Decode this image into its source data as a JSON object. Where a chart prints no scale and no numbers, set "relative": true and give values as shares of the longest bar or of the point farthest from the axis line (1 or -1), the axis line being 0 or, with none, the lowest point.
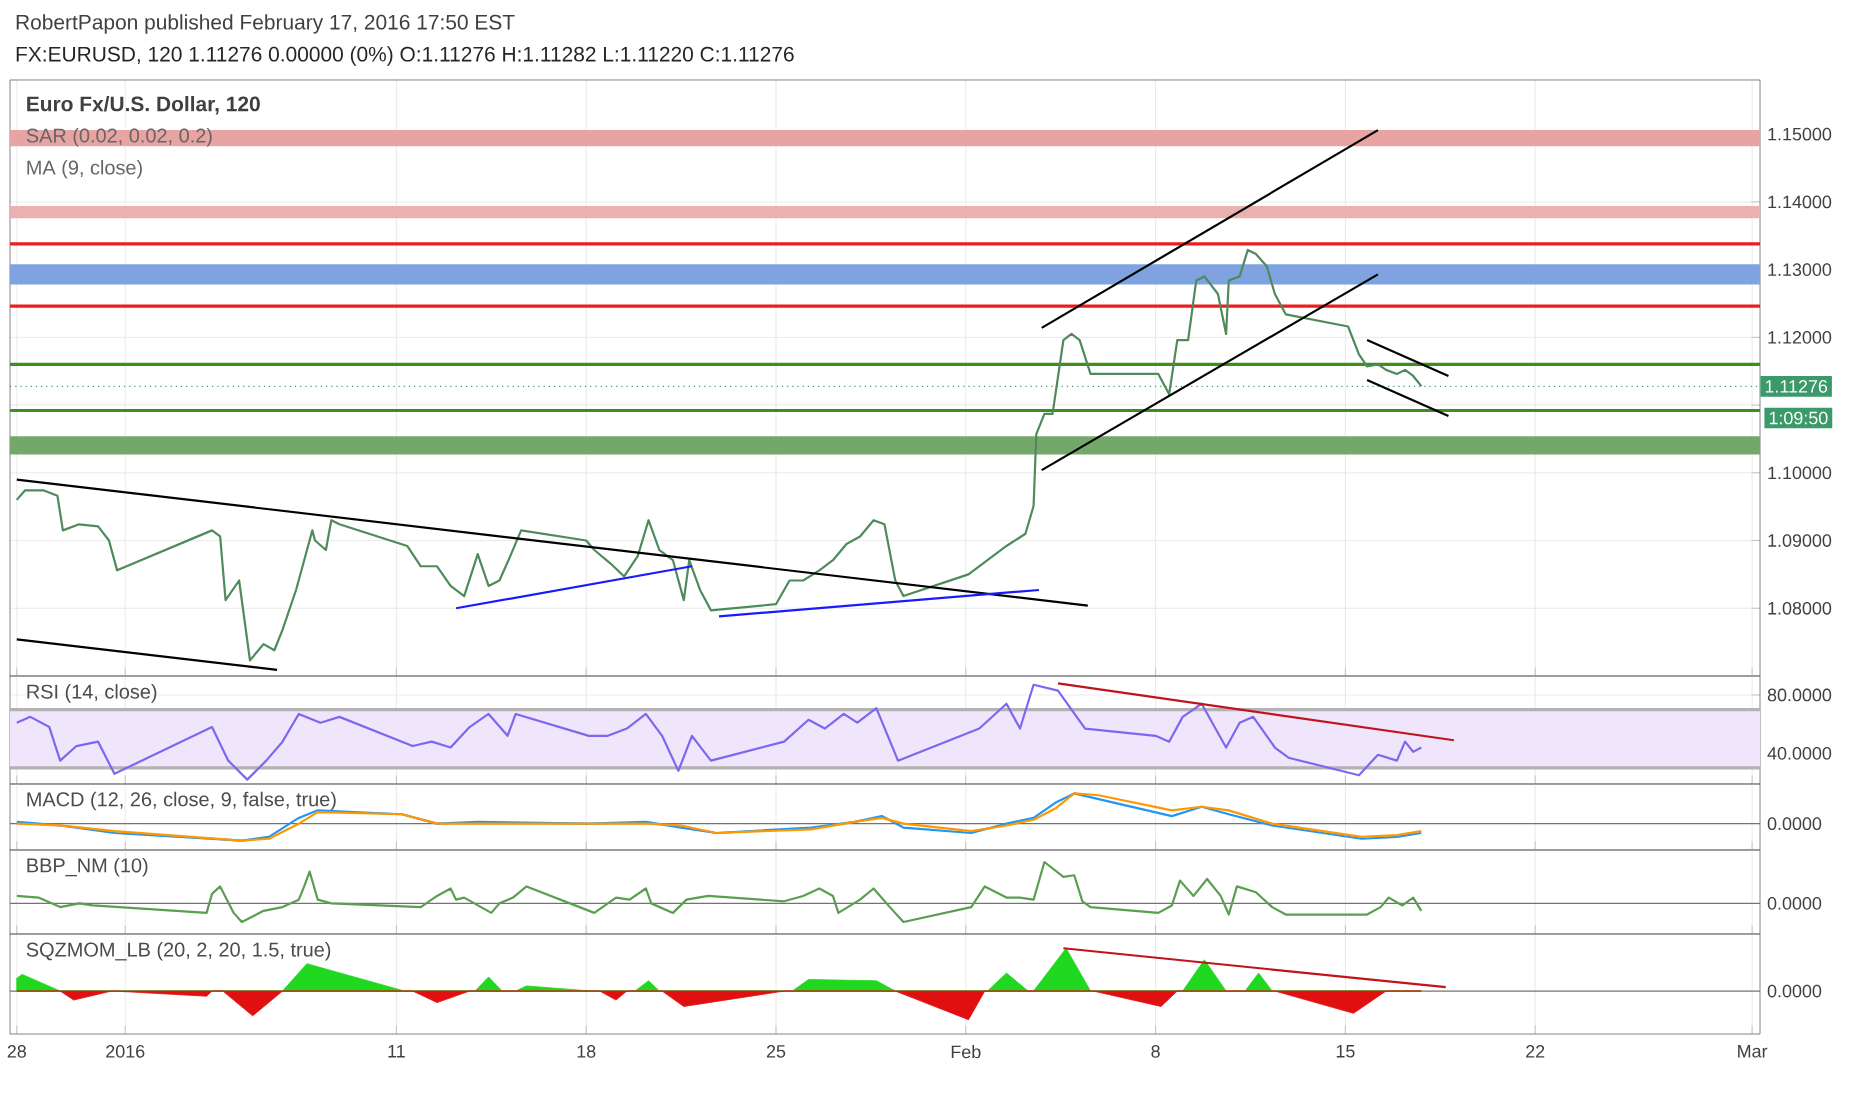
{
  "chart_data": [
    {
      "type": "line",
      "title": "FX:EURUSD, 120 1.11276 0.00000 (0%) O:1.11276 H:1.11282 L:1.11220 C:1.11276",
      "subtitle": "Euro Fx/U.S. Dollar, 120",
      "annotations": [
        "RobertPapon published February 17, 2016 17:50 EST",
        "SAR (0.02, 0.02, 0.2)",
        "MA (9, close)",
        "1:09:50"
      ],
      "xlim": [
        "2015-12-27T18:00",
        "2016-03-01T07:00"
      ],
      "xticks": [
        {
          "value": "2015-12-28",
          "label": null
        },
        {
          "value": "2016-01-01",
          "label": null
        },
        {
          "value": "2016-01-11",
          "label": null
        },
        {
          "value": "2016-01-18",
          "label": null
        },
        {
          "value": "2016-01-25",
          "label": null
        },
        {
          "value": "2016-02-01",
          "label": null
        },
        {
          "value": "2016-02-08",
          "label": null
        },
        {
          "value": "2016-02-15",
          "label": null
        },
        {
          "value": "2016-02-22",
          "label": null
        },
        {
          "value": "2016-03-01",
          "label": null
        }
      ],
      "ylim": [
        1.07,
        1.158
      ],
      "yticks": [
        {
          "value": 1.08,
          "label": "1.08000"
        },
        {
          "value": 1.09,
          "label": "1.09000"
        },
        {
          "value": 1.1,
          "label": "1.10000"
        },
        {
          "value": 1.11,
          "label": null
        },
        {
          "value": 1.12,
          "label": "1.12000"
        },
        {
          "value": 1.13,
          "label": "1.13000"
        },
        {
          "value": 1.14,
          "label": "1.14000"
        },
        {
          "value": 1.15,
          "label": "1.15000"
        }
      ],
      "grid": true,
      "tick_labels": "y",
      "bands": [
        {
          "axis": "y",
          "from": 1.1482,
          "to": 1.1506,
          "color": "#e8a3a3"
        },
        {
          "axis": "y",
          "from": 1.1376,
          "to": 1.1394,
          "color": "#eab1b1"
        },
        {
          "axis": "y",
          "from": 1.1278,
          "to": 1.1308,
          "color": "#7fa3e0"
        },
        {
          "axis": "y",
          "from": 1.1027,
          "to": 1.1054,
          "color": "#74a86a"
        }
      ],
      "ref_lines": [
        {
          "axis": "y",
          "value": 1.1338,
          "color": "#ee1c1c"
        },
        {
          "axis": "y",
          "value": 1.1246,
          "color": "#ee1c1c"
        },
        {
          "axis": "y",
          "value": 1.116,
          "color": "#3e8e1f"
        },
        {
          "axis": "y",
          "value": 1.1092,
          "color": "#3e8e1f"
        },
        {
          "axis": "y",
          "value": 1.11276,
          "label": "1.11276",
          "color": "#3c9a6a",
          "line_style": "dotted"
        }
      ],
      "series": [
        {
          "color": "#4f8a5b",
          "x": [
            "2015-12-28T00:00",
            "2015-12-28T07:12",
            "2015-12-29T00:00",
            "2015-12-29T12:00",
            "2015-12-29T16:48",
            "2015-12-30T07:12",
            "2015-12-31T00:00",
            "2015-12-31T09:36",
            "2015-12-31T16:48",
            "2016-01-04T04:48",
            "2016-01-04T12:00",
            "2016-01-04T16:48",
            "2016-01-05T04:48",
            "2016-01-05T09:36",
            "2016-01-05T14:24",
            "2016-01-06T02:24",
            "2016-01-06T12:00",
            "2016-01-06T19:12",
            "2016-01-07T07:12",
            "2016-01-07T14:24",
            "2016-01-07T21:36",
            "2016-01-08T00:00",
            "2016-01-08T09:36",
            "2016-01-08T14:24",
            "2016-01-08T21:36",
            "2016-01-11T09:36",
            "2016-01-11T21:36",
            "2016-01-12T12:00",
            "2016-01-13T00:00",
            "2016-01-13T12:00",
            "2016-01-14T00:00",
            "2016-01-14T09:36",
            "2016-01-14T19:12",
            "2016-01-15T04:48",
            "2016-01-15T14:24",
            "2016-01-18T00:00",
            "2016-01-18T07:12",
            "2016-01-18T21:36",
            "2016-01-19T09:36",
            "2016-01-19T21:36",
            "2016-01-20T07:12",
            "2016-01-20T16:48",
            "2016-01-21T04:48",
            "2016-01-21T14:24",
            "2016-01-21T19:12",
            "2016-01-22T04:48",
            "2016-01-22T14:24",
            "2016-01-25T00:00",
            "2016-01-25T12:00",
            "2016-01-26T00:00",
            "2016-01-26T14:24",
            "2016-01-27T02:24",
            "2016-01-27T14:24",
            "2016-01-28T02:24",
            "2016-01-28T14:24",
            "2016-01-29T00:00",
            "2016-01-29T09:36",
            "2016-01-29T16:48",
            "2016-02-01T02:24",
            "2016-02-01T19:12",
            "2016-02-02T12:00",
            "2016-02-03T04:48",
            "2016-02-03T12:00",
            "2016-02-03T14:24",
            "2016-02-03T21:36",
            "2016-02-04T04:48",
            "2016-02-04T14:24",
            "2016-02-04T21:36",
            "2016-02-05T04:48",
            "2016-02-05T14:24",
            "2016-02-08T02:24",
            "2016-02-08T12:00",
            "2016-02-08T19:12",
            "2016-02-09T04:48",
            "2016-02-09T12:00",
            "2016-02-09T19:12",
            "2016-02-10T07:12",
            "2016-02-10T14:24",
            "2016-02-10T16:48",
            "2016-02-11T02:24",
            "2016-02-11T09:36",
            "2016-02-11T16:48",
            "2016-02-12T02:24",
            "2016-02-12T09:36",
            "2016-02-12T19:12",
            "2016-02-15T02:24",
            "2016-02-15T12:00",
            "2016-02-15T19:12",
            "2016-02-16T04:48",
            "2016-02-16T12:00",
            "2016-02-16T21:36",
            "2016-02-17T04:48",
            "2016-02-17T12:00",
            "2016-02-17T19:12"
          ],
          "values": [
            1.096,
            1.0974,
            1.0974,
            1.0966,
            1.0915,
            1.0924,
            1.0921,
            1.09,
            1.0856,
            1.0915,
            1.0906,
            1.0812,
            1.0841,
            1.0782,
            1.0723,
            1.0747,
            1.0738,
            1.0768,
            1.0827,
            1.0871,
            1.0915,
            1.09,
            1.0886,
            1.093,
            1.0924,
            1.0892,
            1.0862,
            1.0862,
            1.0833,
            1.0818,
            1.088,
            1.0833,
            1.0841,
            1.0877,
            1.0915,
            1.09,
            1.0886,
            1.0866,
            1.0847,
            1.0877,
            1.093,
            1.0886,
            1.0871,
            1.0812,
            1.0871,
            1.0827,
            1.0797,
            1.0806,
            1.0841,
            1.0841,
            1.0856,
            1.0871,
            1.0895,
            1.0906,
            1.093,
            1.0924,
            1.0841,
            1.0818,
            1.085,
            1.0871,
            1.0892,
            1.091,
            1.0951,
            1.1057,
            1.1087,
            1.1087,
            1.1196,
            1.1205,
            1.1196,
            1.1146,
            1.1146,
            1.1116,
            1.1196,
            1.1196,
            1.1284,
            1.129,
            1.1264,
            1.1205,
            1.1284,
            1.129,
            1.1329,
            1.1323,
            1.1305,
            1.1264,
            1.1234,
            1.1216,
            1.1175,
            1.1157,
            1.116,
            1.1152,
            1.1146,
            1.1152,
            1.1143,
            1.1128
          ]
        },
        {
          "color": "#000000",
          "x": [
            "2015-12-28T00:00",
            "2016-02-05T12:00"
          ],
          "values": [
            1.099,
            1.0804
          ]
        },
        {
          "color": "#000000",
          "x": [
            "2015-12-28T00:00",
            "2016-01-06T14:24"
          ],
          "values": [
            1.0754,
            1.0709
          ]
        },
        {
          "color": "#000000",
          "x": [
            "2016-02-03T19:12",
            "2016-02-16T04:48"
          ],
          "values": [
            1.1004,
            1.1293
          ]
        },
        {
          "color": "#000000",
          "x": [
            "2016-02-03T19:12",
            "2016-02-16T04:48"
          ],
          "values": [
            1.1214,
            1.1506
          ]
        },
        {
          "color": "#000000",
          "x": [
            "2016-02-15T19:12",
            "2016-02-18T19:12"
          ],
          "values": [
            1.1196,
            1.1143
          ]
        },
        {
          "color": "#000000",
          "x": [
            "2016-02-15T19:12",
            "2016-02-18T19:12"
          ],
          "values": [
            1.1137,
            1.1084
          ]
        },
        {
          "color": "#1a1aff",
          "x": [
            "2016-01-13T04:48",
            "2016-01-21T21:36"
          ],
          "values": [
            1.08,
            1.0862
          ]
        },
        {
          "color": "#1a1aff",
          "x": [
            "2016-01-22T21:36",
            "2016-02-03T16:48"
          ],
          "values": [
            1.0788,
            1.0827
          ]
        }
      ]
    },
    {
      "type": "line",
      "title": "RSI (14, close)",
      "xlim": [
        "2015-12-27T18:00",
        "2016-03-01T07:00"
      ],
      "xticks": [
        {
          "value": "2015-12-28",
          "label": null
        },
        {
          "value": "2016-01-01",
          "label": null
        },
        {
          "value": "2016-01-11",
          "label": null
        },
        {
          "value": "2016-01-18",
          "label": null
        },
        {
          "value": "2016-01-25",
          "label": null
        },
        {
          "value": "2016-02-01",
          "label": null
        },
        {
          "value": "2016-02-08",
          "label": null
        },
        {
          "value": "2016-02-15",
          "label": null
        },
        {
          "value": "2016-02-22",
          "label": null
        },
        {
          "value": "2016-03-01",
          "label": null
        }
      ],
      "ylim": [
        19,
        93
      ],
      "yticks": [
        {
          "value": 40,
          "label": "40.0000"
        },
        {
          "value": 80,
          "label": "80.0000"
        }
      ],
      "grid": true,
      "tick_labels": "y",
      "bands": [
        {
          "axis": "y",
          "from": 30,
          "to": 70,
          "color": "#efe6fb"
        }
      ],
      "ref_lines": [
        {
          "axis": "y",
          "value": 70,
          "color": "#b3b3b3"
        },
        {
          "axis": "y",
          "value": 30,
          "color": "#b3b3b3"
        }
      ],
      "series": [
        {
          "color": "#7b68ee",
          "x": [
            "2015-12-28T00:00",
            "2015-12-28T12:00",
            "2015-12-29T04:48",
            "2015-12-29T14:24",
            "2015-12-30T04:48",
            "2015-12-31T00:00",
            "2015-12-31T14:24",
            "2016-01-04T04:48",
            "2016-01-04T19:12",
            "2016-01-05T12:00",
            "2016-01-06T04:48",
            "2016-01-06T19:12",
            "2016-01-07T09:36",
            "2016-01-08T04:48",
            "2016-01-08T21:36",
            "2016-01-11T14:24",
            "2016-01-12T07:12",
            "2016-01-13T00:00",
            "2016-01-13T16:48",
            "2016-01-14T09:36",
            "2016-01-15T02:24",
            "2016-01-15T09:36",
            "2016-01-18T02:24",
            "2016-01-18T19:12",
            "2016-01-19T12:00",
            "2016-01-20T04:48",
            "2016-01-20T19:12",
            "2016-01-21T09:36",
            "2016-01-21T21:36",
            "2016-01-22T14:24",
            "2016-01-25T07:12",
            "2016-01-26T04:48",
            "2016-01-26T19:12",
            "2016-01-27T12:00",
            "2016-01-28T00:00",
            "2016-01-28T16:48",
            "2016-01-29T12:00",
            "2016-02-01T12:00",
            "2016-02-02T12:00",
            "2016-02-03T00:00",
            "2016-02-03T12:00",
            "2016-02-04T09:36",
            "2016-02-05T09:36",
            "2016-02-08T00:00",
            "2016-02-08T12:00",
            "2016-02-09T00:00",
            "2016-02-09T16:48",
            "2016-02-10T14:24",
            "2016-02-11T02:24",
            "2016-02-11T14:24",
            "2016-02-12T09:36",
            "2016-02-12T21:36",
            "2016-02-15T12:00",
            "2016-02-16T04:48",
            "2016-02-16T21:36",
            "2016-02-17T04:48",
            "2016-02-17T12:00",
            "2016-02-17T19:12"
          ],
          "values": [
            61,
            65,
            58,
            35,
            45,
            48,
            26,
            58,
            35,
            22,
            35,
            48,
            67,
            61,
            65,
            45,
            48,
            44,
            58,
            67,
            52,
            67,
            52,
            52,
            57,
            67,
            52,
            28,
            52,
            35,
            48,
            63,
            57,
            67,
            61,
            71,
            35,
            57,
            74,
            57,
            87,
            83,
            57,
            52,
            48,
            65,
            74,
            44,
            61,
            65,
            44,
            37,
            25,
            39,
            35,
            48,
            41,
            44
          ]
        },
        {
          "color": "#c0141c",
          "x": [
            "2016-02-04T09:36",
            "2016-02-19T00:00"
          ],
          "values": [
            88,
            49
          ]
        }
      ]
    },
    {
      "type": "line",
      "title": "MACD (12, 26, close, 9, false, true)",
      "relative": true,
      "xlim": [
        "2015-12-27T18:00",
        "2016-03-01T07:00"
      ],
      "xticks": [
        {
          "value": "2015-12-28",
          "label": null
        },
        {
          "value": "2016-01-01",
          "label": null
        },
        {
          "value": "2016-01-11",
          "label": null
        },
        {
          "value": "2016-01-18",
          "label": null
        },
        {
          "value": "2016-01-25",
          "label": null
        },
        {
          "value": "2016-02-01",
          "label": null
        },
        {
          "value": "2016-02-08",
          "label": null
        },
        {
          "value": "2016-02-15",
          "label": null
        },
        {
          "value": "2016-02-22",
          "label": null
        },
        {
          "value": "2016-03-01",
          "label": null
        }
      ],
      "annotations": [
        "0.0000"
      ],
      "grid": true,
      "tick_labels": "y",
      "series": [
        {
          "color": "#2196f3",
          "x": [
            "2015-12-28T00:00",
            "2015-12-29T14:24",
            "2015-12-31T14:24",
            "2016-01-05T07:12",
            "2016-01-06T07:12",
            "2016-01-07T09:36",
            "2016-01-08T02:24",
            "2016-01-11T04:48",
            "2016-01-12T12:00",
            "2016-01-14T00:00",
            "2016-01-18T02:24",
            "2016-01-20T04:48",
            "2016-01-21T12:00",
            "2016-01-22T19:12",
            "2016-01-26T07:12",
            "2016-01-27T21:36",
            "2016-01-28T21:36",
            "2016-01-29T16:48",
            "2016-02-01T04:48",
            "2016-02-02T12:00",
            "2016-02-03T12:00",
            "2016-02-04T07:12",
            "2016-02-05T00:00",
            "2016-02-05T21:36",
            "2016-02-08T14:24",
            "2016-02-09T16:48",
            "2016-02-10T16:48",
            "2016-02-12T07:12",
            "2016-02-15T14:24",
            "2016-02-16T21:36",
            "2016-02-17T19:12"
          ],
          "values": [
            0.06,
            -0.06,
            -0.31,
            -0.56,
            -0.44,
            0.19,
            0.44,
            0.31,
            0,
            0.06,
            0,
            0.06,
            -0.13,
            -0.31,
            -0.13,
            0.06,
            0.25,
            -0.13,
            -0.31,
            0,
            0.19,
            0.69,
            1,
            0.81,
            0.25,
            0.56,
            0.31,
            -0.06,
            -0.5,
            -0.44,
            -0.31
          ]
        },
        {
          "color": "#ff9800",
          "x": [
            "2015-12-28T00:00",
            "2015-12-29T14:24",
            "2015-12-31T14:24",
            "2016-01-05T07:12",
            "2016-01-06T07:12",
            "2016-01-07T09:36",
            "2016-01-08T02:24",
            "2016-01-11T04:48",
            "2016-01-12T12:00",
            "2016-01-14T00:00",
            "2016-01-18T02:24",
            "2016-01-20T04:48",
            "2016-01-21T12:00",
            "2016-01-22T19:12",
            "2016-01-26T07:12",
            "2016-01-27T21:36",
            "2016-01-28T21:36",
            "2016-01-29T16:48",
            "2016-02-01T04:48",
            "2016-02-02T12:00",
            "2016-02-03T12:00",
            "2016-02-04T07:12",
            "2016-02-05T00:00",
            "2016-02-05T21:36",
            "2016-02-08T14:24",
            "2016-02-09T16:48",
            "2016-02-10T16:48",
            "2016-02-12T07:12",
            "2016-02-15T14:24",
            "2016-02-16T21:36",
            "2016-02-17T19:12"
          ],
          "values": [
            0,
            -0.06,
            -0.25,
            -0.56,
            -0.5,
            0,
            0.38,
            0.31,
            0,
            0,
            0,
            0,
            -0.06,
            -0.31,
            -0.19,
            0.06,
            0.19,
            0,
            -0.25,
            -0.06,
            0.13,
            0.5,
            1,
            0.94,
            0.44,
            0.56,
            0.44,
            0,
            -0.44,
            -0.38,
            -0.25
          ]
        }
      ]
    },
    {
      "type": "line",
      "title": "BBP_NM (10)",
      "relative": true,
      "xlim": [
        "2015-12-27T18:00",
        "2016-03-01T07:00"
      ],
      "xticks": [
        {
          "value": "2015-12-28",
          "label": null
        },
        {
          "value": "2016-01-01",
          "label": null
        },
        {
          "value": "2016-01-11",
          "label": null
        },
        {
          "value": "2016-01-18",
          "label": null
        },
        {
          "value": "2016-01-25",
          "label": null
        },
        {
          "value": "2016-02-01",
          "label": null
        },
        {
          "value": "2016-02-08",
          "label": null
        },
        {
          "value": "2016-02-15",
          "label": null
        },
        {
          "value": "2016-02-22",
          "label": null
        },
        {
          "value": "2016-03-01",
          "label": null
        }
      ],
      "annotations": [
        "0.0000"
      ],
      "grid": true,
      "tick_labels": "y",
      "series": [
        {
          "color": "#5a9e50",
          "x": [
            "2015-12-28T00:00",
            "2015-12-28T19:12",
            "2015-12-29T14:24",
            "2015-12-30T07:12",
            "2015-12-30T19:12",
            "2016-01-04T00:00",
            "2016-01-04T04:48",
            "2016-01-04T12:00",
            "2016-01-05T00:00",
            "2016-01-05T07:12",
            "2016-01-06T02:24",
            "2016-01-06T19:12",
            "2016-01-07T09:36",
            "2016-01-07T14:24",
            "2016-01-07T19:12",
            "2016-01-08T02:24",
            "2016-01-08T14:24",
            "2016-01-11T21:36",
            "2016-01-12T12:00",
            "2016-01-13T00:00",
            "2016-01-13T04:48",
            "2016-01-13T12:00",
            "2016-01-14T12:00",
            "2016-01-14T19:12",
            "2016-01-15T07:12",
            "2016-01-15T19:12",
            "2016-01-18T07:12",
            "2016-01-19T02:24",
            "2016-01-19T14:24",
            "2016-01-20T04:48",
            "2016-01-20T09:36",
            "2016-01-21T04:48",
            "2016-01-21T16:48",
            "2016-01-22T12:00",
            "2016-01-25T07:12",
            "2016-01-26T00:00",
            "2016-01-26T14:24",
            "2016-01-27T02:24",
            "2016-01-27T07:12",
            "2016-01-28T02:24",
            "2016-01-28T14:24",
            "2016-01-29T04:48",
            "2016-01-29T16:48",
            "2016-02-01T04:48",
            "2016-02-01T16:48",
            "2016-02-02T12:00",
            "2016-02-03T00:00",
            "2016-02-03T12:00",
            "2016-02-03T21:36",
            "2016-02-04T14:24",
            "2016-02-05T00:00",
            "2016-02-05T07:12",
            "2016-02-05T14:24",
            "2016-02-08T02:24",
            "2016-02-08T14:24",
            "2016-02-08T21:36",
            "2016-02-09T09:36",
            "2016-02-09T21:36",
            "2016-02-10T09:36",
            "2016-02-10T16:48",
            "2016-02-11T00:00",
            "2016-02-11T16:48",
            "2016-02-12T07:12",
            "2016-02-12T19:12",
            "2016-02-15T19:12",
            "2016-02-16T07:12",
            "2016-02-16T14:24",
            "2016-02-17T02:24",
            "2016-02-17T12:00",
            "2016-02-17T19:12"
          ],
          "values": [
            0.18,
            0.14,
            -0.09,
            0,
            -0.05,
            -0.23,
            0.23,
            0.41,
            -0.23,
            -0.45,
            -0.18,
            -0.09,
            0.09,
            0.41,
            0.77,
            0.09,
            0,
            -0.09,
            0.18,
            0.36,
            0.09,
            0.14,
            -0.23,
            0,
            0.14,
            0.41,
            -0.23,
            0.14,
            0.09,
            0.36,
            0,
            -0.23,
            0.09,
            0.18,
            0.05,
            0.18,
            0.36,
            0.18,
            -0.23,
            0.09,
            0.36,
            -0.09,
            -0.45,
            -0.09,
            0.41,
            0.14,
            0.14,
            0.09,
            1,
            0.64,
            0.68,
            0.05,
            -0.09,
            -0.23,
            -0.05,
            0.55,
            0.18,
            0.59,
            0.18,
            -0.27,
            0.41,
            0.27,
            -0.09,
            -0.27,
            -0.27,
            -0.09,
            0.14,
            -0.05,
            0.14,
            -0.18
          ]
        }
      ]
    },
    {
      "type": "area",
      "title": "SQZMOM_LB (20, 2, 20, 1.5, true)",
      "relative": true,
      "xlim": [
        "2015-12-27T18:00",
        "2016-03-01T07:00"
      ],
      "xticks": [
        {
          "value": "2015-12-28",
          "label": "28"
        },
        {
          "value": "2016-01-01",
          "label": "2016"
        },
        {
          "value": "2016-01-11",
          "label": "11"
        },
        {
          "value": "2016-01-18",
          "label": "18"
        },
        {
          "value": "2016-01-25",
          "label": "25"
        },
        {
          "value": "2016-02-01",
          "label": "Feb"
        },
        {
          "value": "2016-02-08",
          "label": "8"
        },
        {
          "value": "2016-02-15",
          "label": "15"
        },
        {
          "value": "2016-02-22",
          "label": "22"
        },
        {
          "value": "2016-03-01",
          "label": "Mar"
        }
      ],
      "annotations": [
        "0.0000"
      ],
      "grid": true,
      "series": [
        {
          "color": "#1fd81f",
          "x": [
            "2015-12-28T00:00",
            "2015-12-28T04:48",
            "2015-12-29T14:24",
            "2016-01-06T19:12",
            "2016-01-07T16:48",
            "2016-01-11T07:12",
            "2016-01-13T21:36",
            "2016-01-14T09:36",
            "2016-01-14T21:36",
            "2016-01-15T09:36",
            "2016-01-15T19:12",
            "2016-01-18T04:48",
            "2016-01-19T19:12",
            "2016-01-20T07:12",
            "2016-01-20T16:48",
            "2016-01-25T14:24",
            "2016-01-26T04:48",
            "2016-01-28T16:48",
            "2016-01-29T09:36",
            "2016-02-01T19:12",
            "2016-02-02T12:00",
            "2016-02-03T07:12",
            "2016-02-03T12:00",
            "2016-02-04T16:48",
            "2016-02-05T14:24",
            "2016-02-09T00:00",
            "2016-02-09T19:12",
            "2016-02-10T14:24",
            "2016-02-11T07:12",
            "2016-02-11T19:12",
            "2016-02-12T07:12",
            "2016-02-17T19:12"
          ],
          "values": [
            0.3,
            0.39,
            0,
            0,
            0.64,
            0,
            0,
            0.33,
            0,
            0,
            0.12,
            0,
            0,
            0.24,
            0,
            0,
            0.27,
            0.24,
            0,
            0,
            0.42,
            0,
            0,
            1,
            0,
            0,
            0.73,
            0,
            0,
            0.42,
            0,
            0
          ]
        },
        {
          "color": "#e01010",
          "x": [
            "2015-12-28T00:00",
            "2015-12-29T14:24",
            "2015-12-30T02:24",
            "2015-12-31T12:00",
            "2015-12-31T14:24",
            "2016-01-04T00:00",
            "2016-01-04T04:48",
            "2016-01-04T14:24",
            "2016-01-05T16:48",
            "2016-01-06T19:12",
            "2016-01-11T14:24",
            "2016-01-12T12:00",
            "2016-01-13T16:48",
            "2016-01-18T12:00",
            "2016-01-19T02:24",
            "2016-01-19T12:00",
            "2016-01-20T19:12",
            "2016-01-21T14:24",
            "2016-01-25T07:12",
            "2016-01-29T09:36",
            "2016-02-01T02:24",
            "2016-02-01T16:48",
            "2016-02-05T16:48",
            "2016-02-08T04:48",
            "2016-02-08T19:12",
            "2016-02-12T09:36",
            "2016-02-15T07:12",
            "2016-02-16T12:00",
            "2016-02-17T19:12"
          ],
          "values": [
            0,
            0,
            -0.21,
            0,
            0,
            -0.12,
            0,
            0,
            -0.58,
            0,
            0,
            -0.27,
            0,
            0,
            -0.21,
            0,
            0,
            -0.36,
            0,
            0,
            -0.67,
            0,
            0,
            -0.36,
            0,
            0,
            -0.52,
            0,
            0
          ]
        },
        {
          "type": "line",
          "color": "#c0141c",
          "x": [
            "2016-02-04T14:24",
            "2016-02-18T16:48"
          ],
          "values": [
            1,
            0.09
          ]
        }
      ]
    }
  ]
}
